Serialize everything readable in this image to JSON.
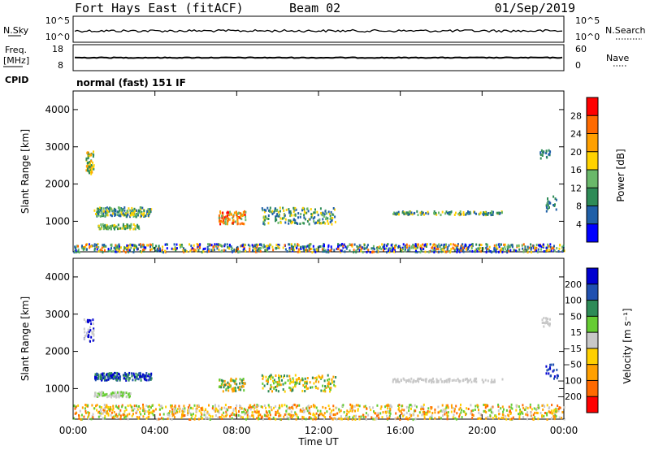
{
  "header": {
    "station": "Fort Hays East (fitACF)",
    "beam": "Beam 02",
    "date": "01/Sep/2019"
  },
  "status_panels": {
    "nsky_label": "N.Sky",
    "nsky_ticks": [
      "10^5",
      "10^0"
    ],
    "nsearch_label": "N.Search",
    "nsearch_ticks": [
      "10^5",
      "10^0"
    ],
    "freq_label_line1": "Freq.",
    "freq_label_line2": "[MHz]",
    "freq_ticks": [
      "18",
      "8"
    ],
    "nave_label": "Nave",
    "nave_ticks": [
      "60",
      "0"
    ],
    "cpid_label": "CPID",
    "cpid_text": "normal (fast) 151 IF"
  },
  "chart_data": [
    {
      "type": "heatmap",
      "name": "power",
      "ylabel": "Slant Range [km]",
      "yticks": [
        "4000",
        "3000",
        "2000",
        "1000"
      ],
      "ylim": [
        180,
        4500
      ],
      "xticks": [
        "00:00",
        "04:00",
        "08:00",
        "12:00",
        "16:00",
        "20:00",
        "00:00"
      ],
      "colorbar": {
        "label": "Power [dB]",
        "ticks": [
          "28",
          "24",
          "20",
          "16",
          "12",
          "8",
          "4"
        ],
        "colors": [
          "#ff0000",
          "#ff6a00",
          "#ffa000",
          "#ffd200",
          "#6ab86a",
          "#2e8b57",
          "#1f5fa8",
          "#0000ff"
        ]
      }
    },
    {
      "type": "heatmap",
      "name": "velocity",
      "ylabel": "Slant Range [km]",
      "yticks": [
        "4000",
        "3000",
        "2000",
        "1000"
      ],
      "ylim": [
        180,
        4500
      ],
      "xticks": [
        "00:00",
        "04:00",
        "08:00",
        "12:00",
        "16:00",
        "20:00",
        "00:00"
      ],
      "xlabel": "Time UT",
      "colorbar": {
        "label": "Velocity [m s⁻¹]",
        "ticks": [
          "200",
          "100",
          "50",
          "15",
          "−15",
          "−50",
          "−100",
          "−200"
        ],
        "colors": [
          "#0000d0",
          "#2050b0",
          "#2e8b57",
          "#66cc33",
          "#c8c8c8",
          "#ffd000",
          "#ffa000",
          "#ff6a00",
          "#ff0000"
        ]
      }
    }
  ]
}
